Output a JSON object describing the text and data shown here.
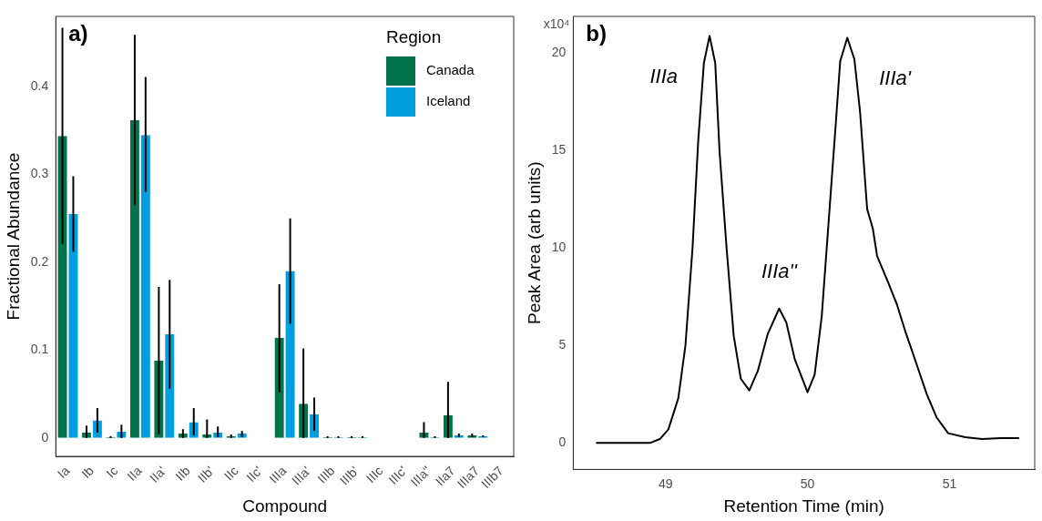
{
  "chart_data": [
    {
      "type": "bar",
      "xlabel": "Compound",
      "ylabel": "Fractional Abundance",
      "legend_title": "Region",
      "legend": "top right",
      "grid": false,
      "categories": [
        "Ia",
        "Ib",
        "Ic",
        "IIa",
        "IIa'",
        "IIb",
        "IIb'",
        "IIc",
        "IIc'",
        "IIIa",
        "IIIa'",
        "IIIb",
        "IIIb'",
        "IIIc",
        "IIIc'",
        "IIIa\"",
        "IIa7",
        "IIIa7",
        "IIIb7"
      ],
      "ylim": [
        -0.021,
        0.48
      ],
      "yticks": [
        0,
        0.1,
        0.2,
        0.3,
        0.4
      ],
      "annotations": [
        "a)"
      ],
      "series": [
        {
          "name": "Canada",
          "color": "#00734a",
          "values": [
            0.344,
            0.006,
            0.001,
            0.362,
            0.088,
            0.005,
            0.004,
            0.002,
            0,
            0.114,
            0.039,
            0.001,
            0.001,
            0,
            0,
            0.006,
            0.026,
            0.003,
            0
          ],
          "errors": [
            [
              0.221,
              0.467
            ],
            [
              0,
              0.014
            ],
            [
              0,
              0.002
            ],
            [
              0.265,
              0.459
            ],
            [
              0.004,
              0.172
            ],
            [
              0,
              0.01
            ],
            [
              0,
              0.021
            ],
            [
              0,
              0.004
            ],
            null,
            [
              0.052,
              0.175
            ],
            [
              0,
              0.102
            ],
            [
              0,
              0.002
            ],
            [
              0,
              0.002
            ],
            null,
            null,
            [
              0,
              0.018
            ],
            [
              0,
              0.064
            ],
            [
              0.001,
              0.005
            ],
            null
          ]
        },
        {
          "name": "Iceland",
          "color": "#009ede",
          "values": [
            0.255,
            0.02,
            0.007,
            0.345,
            0.118,
            0.018,
            0.006,
            0.005,
            0,
            0.19,
            0.027,
            0.001,
            0.001,
            0,
            0,
            0.001,
            0.003,
            0.002,
            0
          ],
          "errors": [
            [
              0.212,
              0.298
            ],
            [
              0.006,
              0.034
            ],
            [
              0,
              0.015
            ],
            [
              0.28,
              0.411
            ],
            [
              0.056,
              0.18
            ],
            [
              0.003,
              0.034
            ],
            [
              0.001,
              0.013
            ],
            [
              0.001,
              0.008
            ],
            null,
            [
              0.13,
              0.25
            ],
            [
              0.008,
              0.046
            ],
            [
              0,
              0.002
            ],
            [
              0,
              0.002
            ],
            null,
            null,
            [
              0,
              0.002
            ],
            [
              0.001,
              0.005
            ],
            [
              0.001,
              0.003
            ],
            null
          ]
        }
      ]
    },
    {
      "type": "line",
      "xlabel": "Retention Time (min)",
      "ylabel": "Peak Area (arb units)",
      "legend": false,
      "grid": false,
      "marker": "none",
      "line_style": "solid",
      "xlim": [
        48.35,
        51.6
      ],
      "xticks": [
        49,
        50,
        51
      ],
      "ylim": [
        -1.36,
        21.9
      ],
      "yticks": [
        0,
        5,
        10,
        15,
        20
      ],
      "annotations": [
        "b)",
        "x10⁴",
        "IIIa",
        "IIIa''",
        "IIIa'"
      ],
      "x": [
        48.51,
        48.89,
        48.96,
        49.02,
        49.09,
        49.14,
        49.19,
        49.23,
        49.27,
        49.31,
        49.35,
        49.38,
        49.43,
        49.48,
        49.53,
        49.59,
        49.65,
        49.72,
        49.8,
        49.85,
        49.91,
        50.0,
        50.05,
        50.1,
        50.15,
        50.2,
        50.23,
        50.28,
        50.33,
        50.37,
        50.42,
        50.46,
        50.49,
        50.57,
        50.63,
        50.69,
        50.77,
        50.84,
        50.91,
        50.99,
        51.11,
        51.23,
        51.36,
        51.49
      ],
      "series": [
        {
          "color": "#000000",
          "values": [
            0,
            0,
            0.2,
            0.7,
            2.3,
            5,
            10,
            15.5,
            19.5,
            20.9,
            19.5,
            15,
            10,
            5.5,
            3.3,
            2.7,
            3.7,
            5.6,
            6.9,
            6.2,
            4.3,
            2.6,
            3.5,
            6.5,
            11.5,
            16.5,
            19.6,
            20.8,
            19.7,
            17,
            12,
            11,
            9.6,
            8.2,
            7.1,
            5.7,
            4,
            2.5,
            1.3,
            0.5,
            0.3,
            0.2,
            0.25,
            0.25
          ]
        }
      ]
    }
  ]
}
